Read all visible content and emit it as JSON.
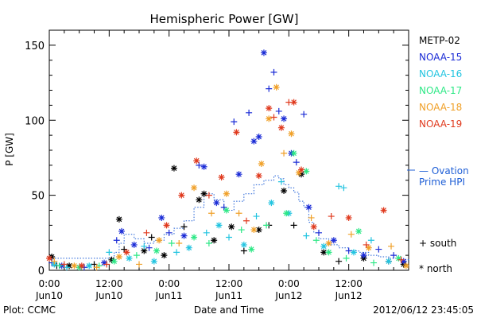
{
  "footer": {
    "left": "Plot: CCMC",
    "center": "Date and Time",
    "right": "2012/06/12 23:45:05"
  },
  "side_labels": {
    "ovation_line1": "— Ovation",
    "ovation_line2": "Prime HPI",
    "south": "+ south",
    "north": "* north"
  },
  "colors": {
    "METP-02": "#000000",
    "NOAA-15": "#1a2bd6",
    "NOAA-16": "#22c4e0",
    "NOAA-17": "#2ee886",
    "NOAA-18": "#f0a028",
    "NOAA-19": "#e03a1e",
    "Ovation": "#1f5fd6"
  },
  "chart_data": {
    "type": "scatter",
    "title": "Hemispheric Power [GW]",
    "xlabel": "Date and Time",
    "ylabel": "P [GW]",
    "x_unit": "hours since 2012-06-10 00:00",
    "xlim": [
      0,
      72
    ],
    "ylim": [
      0,
      160
    ],
    "yticks": [
      0,
      50,
      100,
      150
    ],
    "xticks": [
      {
        "x": 0,
        "line1": "0:00",
        "line2": "Jun10"
      },
      {
        "x": 12,
        "line1": "12:00",
        "line2": "Jun10"
      },
      {
        "x": 24,
        "line1": "0:00",
        "line2": "Jun11"
      },
      {
        "x": 36,
        "line1": "12:00",
        "line2": "Jun11"
      },
      {
        "x": 48,
        "line1": "0:00",
        "line2": "Jun12"
      },
      {
        "x": 60,
        "line1": "12:00",
        "line2": "Jun12"
      }
    ],
    "legend": [
      "METP-02",
      "NOAA-15",
      "NOAA-16",
      "NOAA-17",
      "NOAA-18",
      "NOAA-19"
    ],
    "series": [
      {
        "name": "METP-02",
        "points": [
          {
            "x": 0.5,
            "y": 9,
            "m": "*"
          },
          {
            "x": 1.5,
            "y": 3,
            "m": "+"
          },
          {
            "x": 4,
            "y": 3,
            "m": "*"
          },
          {
            "x": 9,
            "y": 4,
            "m": "+"
          },
          {
            "x": 12.5,
            "y": 7,
            "m": "*"
          },
          {
            "x": 14,
            "y": 34,
            "m": "*"
          },
          {
            "x": 15,
            "y": 14,
            "m": "+"
          },
          {
            "x": 19,
            "y": 13,
            "m": "*"
          },
          {
            "x": 20.5,
            "y": 22,
            "m": "+"
          },
          {
            "x": 23,
            "y": 10,
            "m": "*"
          },
          {
            "x": 25,
            "y": 68,
            "m": "*"
          },
          {
            "x": 27,
            "y": 29,
            "m": "+"
          },
          {
            "x": 30,
            "y": 47,
            "m": "*"
          },
          {
            "x": 31,
            "y": 51,
            "m": "*"
          },
          {
            "x": 33,
            "y": 20,
            "m": "*"
          },
          {
            "x": 36.5,
            "y": 29,
            "m": "*"
          },
          {
            "x": 39,
            "y": 13,
            "m": "+"
          },
          {
            "x": 42,
            "y": 27,
            "m": "*"
          },
          {
            "x": 44,
            "y": 30,
            "m": "+"
          },
          {
            "x": 47,
            "y": 53,
            "m": "*"
          },
          {
            "x": 49,
            "y": 30,
            "m": "+"
          },
          {
            "x": 50.5,
            "y": 64,
            "m": "*"
          },
          {
            "x": 55,
            "y": 12,
            "m": "*"
          },
          {
            "x": 58,
            "y": 6,
            "m": "+"
          },
          {
            "x": 63,
            "y": 8,
            "m": "*"
          },
          {
            "x": 68,
            "y": 6,
            "m": "+"
          },
          {
            "x": 71,
            "y": 4,
            "m": "*"
          }
        ]
      },
      {
        "name": "NOAA-15",
        "points": [
          {
            "x": 0.5,
            "y": 5,
            "m": "+"
          },
          {
            "x": 2.5,
            "y": 3,
            "m": "*"
          },
          {
            "x": 7,
            "y": 2,
            "m": "+"
          },
          {
            "x": 11,
            "y": 5,
            "m": "*"
          },
          {
            "x": 13.5,
            "y": 20,
            "m": "+"
          },
          {
            "x": 14.5,
            "y": 26,
            "m": "*"
          },
          {
            "x": 17,
            "y": 17,
            "m": "*"
          },
          {
            "x": 20,
            "y": 15,
            "m": "+"
          },
          {
            "x": 22.5,
            "y": 35,
            "m": "*"
          },
          {
            "x": 24,
            "y": 25,
            "m": "+"
          },
          {
            "x": 27,
            "y": 23,
            "m": "*"
          },
          {
            "x": 30,
            "y": 70,
            "m": "+"
          },
          {
            "x": 31,
            "y": 69,
            "m": "*"
          },
          {
            "x": 33.5,
            "y": 45,
            "m": "*"
          },
          {
            "x": 35,
            "y": 42,
            "m": "+"
          },
          {
            "x": 37,
            "y": 99,
            "m": "+"
          },
          {
            "x": 38,
            "y": 64,
            "m": "*"
          },
          {
            "x": 40,
            "y": 105,
            "m": "+"
          },
          {
            "x": 41,
            "y": 86,
            "m": "*"
          },
          {
            "x": 42,
            "y": 89,
            "m": "*"
          },
          {
            "x": 43,
            "y": 145,
            "m": "*"
          },
          {
            "x": 44,
            "y": 121,
            "m": "+"
          },
          {
            "x": 45,
            "y": 132,
            "m": "+"
          },
          {
            "x": 46,
            "y": 106,
            "m": "+"
          },
          {
            "x": 47,
            "y": 101,
            "m": "*"
          },
          {
            "x": 48.5,
            "y": 78,
            "m": "*"
          },
          {
            "x": 49.5,
            "y": 72,
            "m": "+"
          },
          {
            "x": 51,
            "y": 104,
            "m": "+"
          },
          {
            "x": 52,
            "y": 42,
            "m": "*"
          },
          {
            "x": 54,
            "y": 25,
            "m": "+"
          },
          {
            "x": 57,
            "y": 20,
            "m": "*"
          },
          {
            "x": 60,
            "y": 13,
            "m": "+"
          },
          {
            "x": 63,
            "y": 10,
            "m": "*"
          },
          {
            "x": 66,
            "y": 14,
            "m": "+"
          },
          {
            "x": 69,
            "y": 10,
            "m": "+"
          },
          {
            "x": 71,
            "y": 6,
            "m": "*"
          }
        ]
      },
      {
        "name": "NOAA-16",
        "points": [
          {
            "x": 1,
            "y": 4,
            "m": "*"
          },
          {
            "x": 3.5,
            "y": 2,
            "m": "+"
          },
          {
            "x": 8,
            "y": 3,
            "m": "*"
          },
          {
            "x": 12,
            "y": 12,
            "m": "+"
          },
          {
            "x": 16,
            "y": 8,
            "m": "*"
          },
          {
            "x": 19,
            "y": 16,
            "m": "+"
          },
          {
            "x": 21,
            "y": 6,
            "m": "*"
          },
          {
            "x": 25.5,
            "y": 12,
            "m": "+"
          },
          {
            "x": 28,
            "y": 15,
            "m": "*"
          },
          {
            "x": 31.5,
            "y": 25,
            "m": "+"
          },
          {
            "x": 34,
            "y": 30,
            "m": "*"
          },
          {
            "x": 36,
            "y": 22,
            "m": "+"
          },
          {
            "x": 39,
            "y": 17,
            "m": "*"
          },
          {
            "x": 41.5,
            "y": 36,
            "m": "+"
          },
          {
            "x": 44.5,
            "y": 45,
            "m": "*"
          },
          {
            "x": 46.5,
            "y": 59,
            "m": "+"
          },
          {
            "x": 48,
            "y": 38,
            "m": "*"
          },
          {
            "x": 51.5,
            "y": 23,
            "m": "+"
          },
          {
            "x": 55,
            "y": 16,
            "m": "*"
          },
          {
            "x": 58,
            "y": 56,
            "m": "+"
          },
          {
            "x": 59,
            "y": 55,
            "m": "+"
          },
          {
            "x": 61,
            "y": 12,
            "m": "*"
          },
          {
            "x": 64.5,
            "y": 20,
            "m": "+"
          },
          {
            "x": 68,
            "y": 6,
            "m": "*"
          }
        ]
      },
      {
        "name": "NOAA-17",
        "points": [
          {
            "x": 2,
            "y": 3,
            "m": "+"
          },
          {
            "x": 6,
            "y": 2,
            "m": "*"
          },
          {
            "x": 10,
            "y": 3,
            "m": "+"
          },
          {
            "x": 13,
            "y": 6,
            "m": "*"
          },
          {
            "x": 17.5,
            "y": 10,
            "m": "+"
          },
          {
            "x": 21.5,
            "y": 13,
            "m": "*"
          },
          {
            "x": 24.5,
            "y": 18,
            "m": "+"
          },
          {
            "x": 29,
            "y": 22,
            "m": "*"
          },
          {
            "x": 32,
            "y": 18,
            "m": "+"
          },
          {
            "x": 35.5,
            "y": 40,
            "m": "*"
          },
          {
            "x": 38.5,
            "y": 27,
            "m": "+"
          },
          {
            "x": 40.5,
            "y": 14,
            "m": "*"
          },
          {
            "x": 43.5,
            "y": 30,
            "m": "+"
          },
          {
            "x": 47.5,
            "y": 38,
            "m": "*"
          },
          {
            "x": 49,
            "y": 78,
            "m": "*"
          },
          {
            "x": 51.5,
            "y": 66,
            "m": "*"
          },
          {
            "x": 53.5,
            "y": 20,
            "m": "+"
          },
          {
            "x": 56,
            "y": 12,
            "m": "*"
          },
          {
            "x": 59.5,
            "y": 8,
            "m": "+"
          },
          {
            "x": 62,
            "y": 26,
            "m": "*"
          },
          {
            "x": 65,
            "y": 5,
            "m": "+"
          },
          {
            "x": 70,
            "y": 8,
            "m": "*"
          }
        ]
      },
      {
        "name": "NOAA-18",
        "points": [
          {
            "x": 1,
            "y": 6,
            "m": "+"
          },
          {
            "x": 5,
            "y": 3,
            "m": "*"
          },
          {
            "x": 9.5,
            "y": 2,
            "m": "+"
          },
          {
            "x": 14,
            "y": 9,
            "m": "*"
          },
          {
            "x": 18,
            "y": 4,
            "m": "+"
          },
          {
            "x": 22,
            "y": 20,
            "m": "*"
          },
          {
            "x": 26,
            "y": 18,
            "m": "+"
          },
          {
            "x": 29,
            "y": 55,
            "m": "*"
          },
          {
            "x": 32.5,
            "y": 38,
            "m": "+"
          },
          {
            "x": 35.5,
            "y": 51,
            "m": "*"
          },
          {
            "x": 38,
            "y": 38,
            "m": "+"
          },
          {
            "x": 41,
            "y": 27,
            "m": "*"
          },
          {
            "x": 42.5,
            "y": 71,
            "m": "*"
          },
          {
            "x": 44,
            "y": 101,
            "m": "*"
          },
          {
            "x": 45.5,
            "y": 122,
            "m": "*"
          },
          {
            "x": 47,
            "y": 78,
            "m": "+"
          },
          {
            "x": 48.5,
            "y": 91,
            "m": "*"
          },
          {
            "x": 50,
            "y": 65,
            "m": "*"
          },
          {
            "x": 52.5,
            "y": 35,
            "m": "+"
          },
          {
            "x": 56,
            "y": 18,
            "m": "*"
          },
          {
            "x": 60.5,
            "y": 24,
            "m": "+"
          },
          {
            "x": 64,
            "y": 15,
            "m": "*"
          },
          {
            "x": 68.5,
            "y": 16,
            "m": "+"
          },
          {
            "x": 71.5,
            "y": 3,
            "m": "*"
          }
        ]
      },
      {
        "name": "NOAA-19",
        "points": [
          {
            "x": 0,
            "y": 8,
            "m": "*"
          },
          {
            "x": 3,
            "y": 4,
            "m": "+"
          },
          {
            "x": 6.5,
            "y": 3,
            "m": "*"
          },
          {
            "x": 11.5,
            "y": 4,
            "m": "+"
          },
          {
            "x": 15.5,
            "y": 12,
            "m": "*"
          },
          {
            "x": 19.5,
            "y": 25,
            "m": "+"
          },
          {
            "x": 23.5,
            "y": 30,
            "m": "*"
          },
          {
            "x": 26.5,
            "y": 50,
            "m": "*"
          },
          {
            "x": 29.5,
            "y": 73,
            "m": "*"
          },
          {
            "x": 32,
            "y": 50,
            "m": "+"
          },
          {
            "x": 34.5,
            "y": 62,
            "m": "*"
          },
          {
            "x": 37.5,
            "y": 92,
            "m": "*"
          },
          {
            "x": 39.5,
            "y": 33,
            "m": "+"
          },
          {
            "x": 42,
            "y": 63,
            "m": "*"
          },
          {
            "x": 44,
            "y": 108,
            "m": "*"
          },
          {
            "x": 45,
            "y": 102,
            "m": "+"
          },
          {
            "x": 46.5,
            "y": 95,
            "m": "*"
          },
          {
            "x": 48,
            "y": 112,
            "m": "+"
          },
          {
            "x": 49,
            "y": 112,
            "m": "*"
          },
          {
            "x": 50.5,
            "y": 67,
            "m": "*"
          },
          {
            "x": 53,
            "y": 29,
            "m": "*"
          },
          {
            "x": 56.5,
            "y": 36,
            "m": "+"
          },
          {
            "x": 60,
            "y": 35,
            "m": "*"
          },
          {
            "x": 63.5,
            "y": 17,
            "m": "+"
          },
          {
            "x": 67,
            "y": 40,
            "m": "*"
          },
          {
            "x": 70.5,
            "y": 7,
            "m": "+"
          }
        ]
      }
    ],
    "ovation": {
      "name": "Ovation Prime HPI",
      "x": [
        0,
        12,
        13,
        14,
        15,
        17,
        19,
        21,
        23,
        25,
        27,
        29,
        31,
        33,
        35,
        37,
        39,
        41,
        43,
        45,
        46,
        47,
        48,
        49,
        50,
        51,
        52,
        53,
        54,
        56,
        58,
        60,
        62,
        64,
        66,
        68,
        70,
        72
      ],
      "y": [
        8,
        8,
        12,
        18,
        24,
        21,
        18,
        20,
        24,
        28,
        33,
        42,
        51,
        47,
        40,
        46,
        51,
        57,
        60,
        63,
        61,
        57,
        55,
        52,
        46,
        42,
        32,
        25,
        21,
        17,
        15,
        13,
        12,
        10,
        9,
        8,
        7,
        6
      ]
    }
  }
}
